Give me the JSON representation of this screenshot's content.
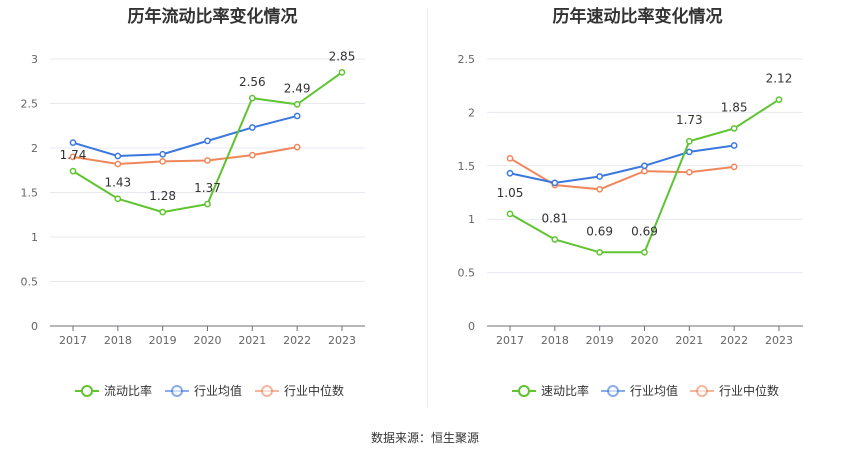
{
  "source_text": "数据来源：恒生聚源",
  "chart_data": [
    {
      "type": "line",
      "title": "历年流动比率变化情况",
      "categories": [
        "2017",
        "2018",
        "2019",
        "2020",
        "2021",
        "2022",
        "2023"
      ],
      "ylim": [
        0,
        3
      ],
      "yticks": [
        "0",
        "0.5",
        "1",
        "1.5",
        "2",
        "2.5",
        "3"
      ],
      "ytick_values": [
        0,
        0.5,
        1,
        1.5,
        2,
        2.5,
        3
      ],
      "grid": true,
      "legend_position": "bottom",
      "series": [
        {
          "name": "流动比率",
          "color": "#5ec42f",
          "values": [
            1.74,
            1.43,
            1.28,
            1.37,
            2.56,
            2.49,
            2.85
          ],
          "labels": [
            "1.74",
            "1.43",
            "1.28",
            "1.37",
            "2.56",
            "2.49",
            "2.85"
          ]
        },
        {
          "name": "行业均值",
          "color": "#3a78e0",
          "values": [
            2.06,
            1.91,
            1.93,
            2.08,
            2.23,
            2.36,
            null
          ]
        },
        {
          "name": "行业中位数",
          "color": "#f0875a",
          "values": [
            1.9,
            1.82,
            1.85,
            1.86,
            1.92,
            2.01,
            null
          ]
        }
      ]
    },
    {
      "type": "line",
      "title": "历年速动比率变化情况",
      "categories": [
        "2017",
        "2018",
        "2019",
        "2020",
        "2021",
        "2022",
        "2023"
      ],
      "ylim": [
        0,
        2.5
      ],
      "yticks": [
        "0",
        "0.5",
        "1",
        "1.5",
        "2",
        "2.5"
      ],
      "ytick_values": [
        0,
        0.5,
        1,
        1.5,
        2,
        2.5
      ],
      "grid": true,
      "legend_position": "bottom",
      "series": [
        {
          "name": "速动比率",
          "color": "#5ec42f",
          "values": [
            1.05,
            0.81,
            0.69,
            0.69,
            1.73,
            1.85,
            2.12
          ],
          "labels": [
            "1.05",
            "0.81",
            "0.69",
            "0.69",
            "1.73",
            "1.85",
            "2.12"
          ]
        },
        {
          "name": "行业均值",
          "color": "#3a78e0",
          "values": [
            1.43,
            1.34,
            1.4,
            1.5,
            1.63,
            1.69,
            null
          ]
        },
        {
          "name": "行业中位数",
          "color": "#f0875a",
          "values": [
            1.57,
            1.32,
            1.28,
            1.45,
            1.44,
            1.49,
            null
          ]
        }
      ]
    }
  ]
}
